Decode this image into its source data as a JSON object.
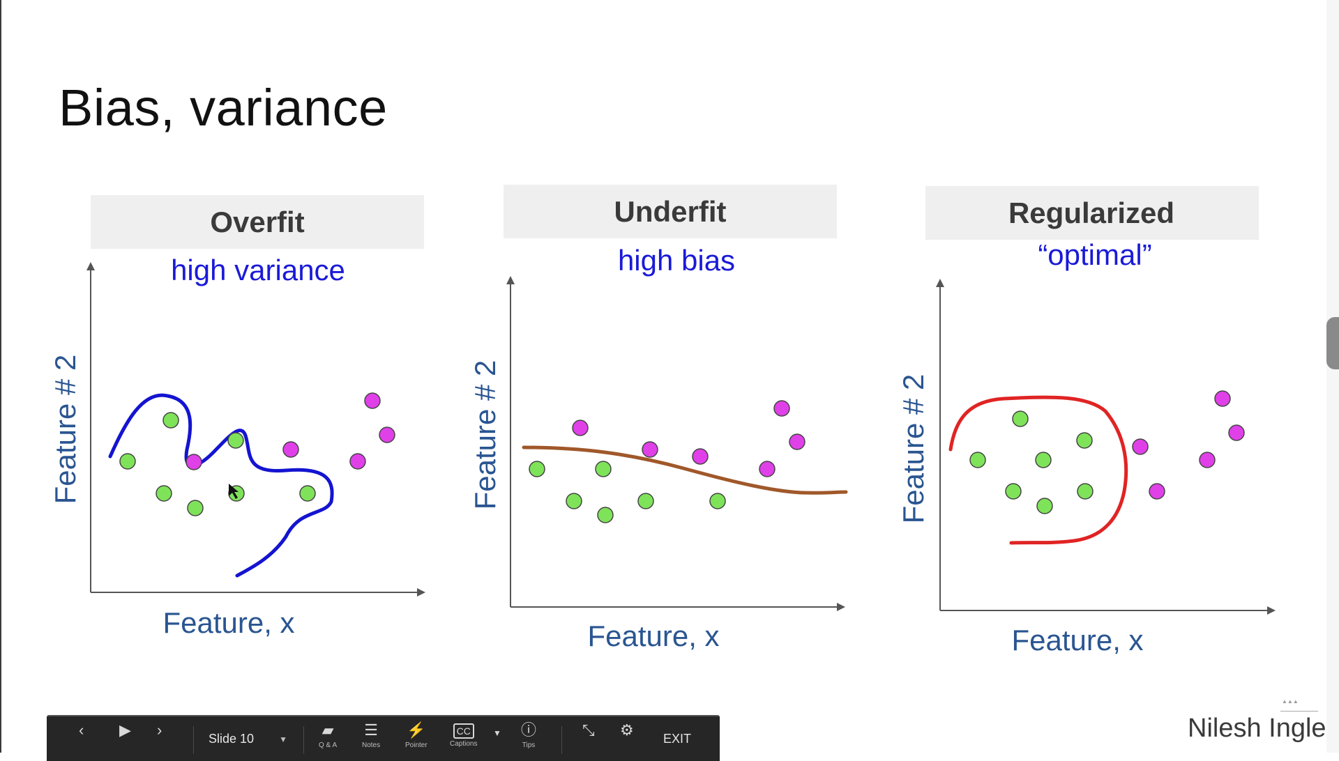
{
  "slide": {
    "title": "Bias, variance",
    "presenter": "Nilesh Ingle"
  },
  "panels": [
    {
      "header": "Overfit",
      "subtitle": "high variance",
      "xlabel": "Feature, x",
      "ylabel": "Feature # 2",
      "curve_color": "#1414d0"
    },
    {
      "header": "Underfit",
      "subtitle": "high bias",
      "xlabel": "Feature, x",
      "ylabel": "Feature # 2",
      "curve_color": "#a0582a"
    },
    {
      "header": "Regularized",
      "subtitle": "“optimal”",
      "xlabel": "Feature, x",
      "ylabel": "Feature # 2",
      "curve_color": "#e02424"
    }
  ],
  "colors": {
    "class_a": "#7fe35a",
    "class_b": "#e040e8",
    "header_bg": "#efefef",
    "subtitle": "#1a1ad8",
    "axis_label": "#2a5591"
  },
  "toolbar": {
    "prev_icon": "chevron-left-icon",
    "play_icon": "play-icon",
    "next_icon": "chevron-right-icon",
    "slide_label": "Slide 10",
    "qa_label": "Q & A",
    "notes_label": "Notes",
    "pointer_label": "Pointer",
    "captions_label": "Captions",
    "tips_label": "Tips",
    "exit_label": "EXIT"
  }
}
